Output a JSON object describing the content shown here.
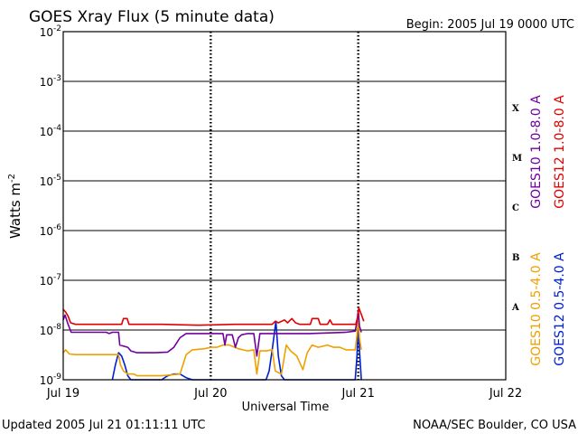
{
  "chart_data": {
    "type": "line",
    "title": "GOES Xray Flux (5 minute data)",
    "begin_label": "Begin:  2005 Jul 19 0000 UTC",
    "xlabel": "Universal Time",
    "ylabel": "Watts m",
    "ylabel_superscript": "-2",
    "y_scale": "log",
    "ylim": [
      1e-09,
      0.01
    ],
    "xlim_hours": [
      0,
      72
    ],
    "x_ticks": [
      {
        "hour": 0,
        "label": "Jul 19"
      },
      {
        "hour": 24,
        "label": "Jul 20"
      },
      {
        "hour": 48,
        "label": "Jul 21"
      },
      {
        "hour": 72,
        "label": "Jul 22"
      }
    ],
    "y_ticks": [
      {
        "value": 0.01,
        "base": "10",
        "exp": "-2"
      },
      {
        "value": 0.001,
        "base": "10",
        "exp": "-3"
      },
      {
        "value": 0.0001,
        "base": "10",
        "exp": "-4"
      },
      {
        "value": 1e-05,
        "base": "10",
        "exp": "-5"
      },
      {
        "value": 1e-06,
        "base": "10",
        "exp": "-6"
      },
      {
        "value": 1e-07,
        "base": "10",
        "exp": "-7"
      },
      {
        "value": 1e-08,
        "base": "10",
        "exp": "-8"
      },
      {
        "value": 1e-09,
        "base": "10",
        "exp": "-9"
      }
    ],
    "flare_classes": [
      {
        "label": "X",
        "value": 0.0003
      },
      {
        "label": "M",
        "value": 3e-05
      },
      {
        "label": "C",
        "value": 3e-06
      },
      {
        "label": "B",
        "value": 3e-07
      },
      {
        "label": "A",
        "value": 3e-08
      }
    ],
    "series": [
      {
        "name": "GOES12 1.0-8.0 A",
        "color": "#e00000",
        "points": [
          [
            0,
            2.6e-08
          ],
          [
            0.4,
            2.3e-08
          ],
          [
            0.8,
            1.9e-08
          ],
          [
            1.2,
            1.4e-08
          ],
          [
            2,
            1.3e-08
          ],
          [
            8,
            1.3e-08
          ],
          [
            9.5,
            1.3e-08
          ],
          [
            9.8,
            1.7e-08
          ],
          [
            10.4,
            1.7e-08
          ],
          [
            10.7,
            1.3e-08
          ],
          [
            16,
            1.3e-08
          ],
          [
            22,
            1.25e-08
          ],
          [
            28,
            1.3e-08
          ],
          [
            34,
            1.3e-08
          ],
          [
            34.5,
            1.5e-08
          ],
          [
            35,
            1.4e-08
          ],
          [
            36,
            1.6e-08
          ],
          [
            36.5,
            1.4e-08
          ],
          [
            37.2,
            1.7e-08
          ],
          [
            37.8,
            1.4e-08
          ],
          [
            38.5,
            1.3e-08
          ],
          [
            40.2,
            1.3e-08
          ],
          [
            40.5,
            1.7e-08
          ],
          [
            41.5,
            1.7e-08
          ],
          [
            41.8,
            1.3e-08
          ],
          [
            43,
            1.3e-08
          ],
          [
            43.4,
            1.6e-08
          ],
          [
            43.8,
            1.3e-08
          ],
          [
            47.6,
            1.3e-08
          ],
          [
            47.9,
            1.8e-08
          ],
          [
            48.1,
            2.8e-08
          ],
          [
            48.3,
            2.4e-08
          ],
          [
            48.6,
            1.9e-08
          ],
          [
            48.9,
            1.5e-08
          ]
        ]
      },
      {
        "name": "GOES10 1.0-8.0 A",
        "color": "#7000a0",
        "points": [
          [
            0,
            1.6e-08
          ],
          [
            0.3,
            2e-08
          ],
          [
            0.8,
            1.3e-08
          ],
          [
            1.3,
            9e-09
          ],
          [
            7,
            9e-09
          ],
          [
            7.5,
            8.5e-09
          ],
          [
            8,
            9e-09
          ],
          [
            9,
            9e-09
          ],
          [
            9.2,
            5e-09
          ],
          [
            10.5,
            4.5e-09
          ],
          [
            11,
            3.8e-09
          ],
          [
            12,
            3.5e-09
          ],
          [
            15,
            3.5e-09
          ],
          [
            17,
            3.6e-09
          ],
          [
            18,
            4.5e-09
          ],
          [
            19,
            7e-09
          ],
          [
            20,
            8.5e-09
          ],
          [
            26,
            8.5e-09
          ],
          [
            26.3,
            5e-09
          ],
          [
            26.6,
            8e-09
          ],
          [
            27.5,
            8e-09
          ],
          [
            28,
            4.5e-09
          ],
          [
            28.5,
            7e-09
          ],
          [
            29,
            8e-09
          ],
          [
            30,
            8.5e-09
          ],
          [
            31,
            8.5e-09
          ],
          [
            31.5,
            3e-09
          ],
          [
            32,
            8.5e-09
          ],
          [
            40,
            8.5e-09
          ],
          [
            46,
            9e-09
          ],
          [
            47.5,
            9.5e-09
          ],
          [
            47.8,
            1.5e-08
          ],
          [
            48,
            2.5e-08
          ],
          [
            48.2,
            1.2e-08
          ],
          [
            48.5,
            9e-09
          ]
        ]
      },
      {
        "name": "GOES10 0.5-4.0 A",
        "color": "#f0a000",
        "points": [
          [
            0,
            3.5e-09
          ],
          [
            0.4,
            4e-09
          ],
          [
            1,
            3.3e-09
          ],
          [
            2,
            3.2e-09
          ],
          [
            8,
            3.2e-09
          ],
          [
            9,
            3.2e-09
          ],
          [
            9.3,
            2e-09
          ],
          [
            9.8,
            1.5e-09
          ],
          [
            10.5,
            1.3e-09
          ],
          [
            11.5,
            1.3e-09
          ],
          [
            12,
            1.2e-09
          ],
          [
            16,
            1.2e-09
          ],
          [
            19,
            1.3e-09
          ],
          [
            20,
            3.2e-09
          ],
          [
            21,
            4e-09
          ],
          [
            23,
            4.2e-09
          ],
          [
            24,
            4.5e-09
          ],
          [
            25,
            4.5e-09
          ],
          [
            26,
            5e-09
          ],
          [
            27,
            5e-09
          ],
          [
            28.5,
            4.2e-09
          ],
          [
            30,
            3.8e-09
          ],
          [
            31,
            4e-09
          ],
          [
            31.5,
            1.3e-09
          ],
          [
            32,
            3.8e-09
          ],
          [
            33,
            3.8e-09
          ],
          [
            34,
            4e-09
          ],
          [
            34.5,
            1.5e-09
          ],
          [
            35.5,
            1.3e-09
          ],
          [
            36.3,
            5e-09
          ],
          [
            37,
            3.8e-09
          ],
          [
            38,
            3e-09
          ],
          [
            39,
            1.6e-09
          ],
          [
            39.7,
            3.5e-09
          ],
          [
            40.5,
            5e-09
          ],
          [
            41.5,
            4.5e-09
          ],
          [
            43,
            5e-09
          ],
          [
            44,
            4.5e-09
          ],
          [
            45,
            4.5e-09
          ],
          [
            46,
            4e-09
          ],
          [
            47.5,
            4e-09
          ],
          [
            47.8,
            8e-09
          ],
          [
            48,
            2e-08
          ],
          [
            48.2,
            7e-09
          ],
          [
            48.5,
            4e-09
          ]
        ]
      },
      {
        "name": "GOES12 0.5-4.0 A",
        "color": "#0020d0",
        "points": [
          [
            8,
            1e-09
          ],
          [
            8.5,
            2e-09
          ],
          [
            9,
            3.5e-09
          ],
          [
            9.5,
            3e-09
          ],
          [
            10,
            2e-09
          ],
          [
            10.5,
            1.2e-09
          ],
          [
            11,
            1e-09
          ],
          [
            16,
            1e-09
          ],
          [
            17,
            1.2e-09
          ],
          [
            18,
            1.3e-09
          ],
          [
            19,
            1.3e-09
          ],
          [
            20,
            1.1e-09
          ],
          [
            21,
            1e-09
          ],
          [
            33,
            1e-09
          ],
          [
            33.5,
            1.5e-09
          ],
          [
            34,
            4e-09
          ],
          [
            34.6,
            1.5e-08
          ],
          [
            35,
            3e-09
          ],
          [
            35.5,
            1.2e-09
          ],
          [
            36,
            1e-09
          ],
          [
            47.5,
            1e-09
          ],
          [
            47.8,
            3e-09
          ],
          [
            48,
            1.5e-08
          ],
          [
            48.2,
            4e-09
          ],
          [
            48.5,
            1e-09
          ]
        ]
      }
    ],
    "legend": [
      {
        "name": "GOES10 1.0-8.0 A",
        "color": "#7000a0"
      },
      {
        "name": "GOES12 1.0-8.0 A",
        "color": "#e00000"
      },
      {
        "name": "GOES10 0.5-4.0 A",
        "color": "#f0a000"
      },
      {
        "name": "GOES12 0.5-4.0 A",
        "color": "#0020d0"
      }
    ],
    "legend_placement": "right",
    "grid": true
  },
  "footer": {
    "updated": "Updated 2005 Jul 21 01:11:11 UTC",
    "credit": "NOAA/SEC Boulder, CO USA"
  }
}
